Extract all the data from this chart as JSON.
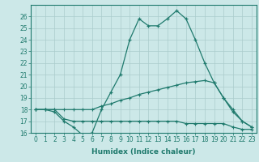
{
  "xlabel": "Humidex (Indice chaleur)",
  "x": [
    0,
    1,
    2,
    3,
    4,
    5,
    6,
    7,
    8,
    9,
    10,
    11,
    12,
    13,
    14,
    15,
    16,
    17,
    18,
    19,
    20,
    21,
    22,
    23
  ],
  "line1": [
    18,
    18,
    17.8,
    17,
    16.5,
    15.8,
    16.0,
    18.0,
    19.5,
    21.0,
    24.0,
    25.8,
    25.2,
    25.2,
    25.8,
    26.5,
    25.8,
    24.0,
    22.0,
    20.3,
    19.0,
    17.8,
    17.0,
    16.5
  ],
  "line2": [
    18,
    18,
    18,
    18,
    18,
    18,
    18,
    18.3,
    18.5,
    18.8,
    19.0,
    19.3,
    19.5,
    19.7,
    19.9,
    20.1,
    20.3,
    20.4,
    20.5,
    20.3,
    19.0,
    18.0,
    17.0,
    16.5
  ],
  "line3": [
    18,
    18,
    18,
    17.2,
    17.0,
    17.0,
    17.0,
    17.0,
    17.0,
    17.0,
    17.0,
    17.0,
    17.0,
    17.0,
    17.0,
    17.0,
    16.8,
    16.8,
    16.8,
    16.8,
    16.8,
    16.5,
    16.3,
    16.3
  ],
  "ylim_min": 16,
  "ylim_max": 27,
  "xlim_min": -0.5,
  "xlim_max": 23.5,
  "yticks": [
    16,
    17,
    18,
    19,
    20,
    21,
    22,
    23,
    24,
    25,
    26
  ],
  "xticks": [
    0,
    1,
    2,
    3,
    4,
    5,
    6,
    7,
    8,
    9,
    10,
    11,
    12,
    13,
    14,
    15,
    16,
    17,
    18,
    19,
    20,
    21,
    22,
    23
  ],
  "line_color": "#1f7a6d",
  "bg_color": "#cce8e8",
  "grid_color": "#aacccc",
  "tick_fontsize": 5.5,
  "xlabel_fontsize": 6.5
}
